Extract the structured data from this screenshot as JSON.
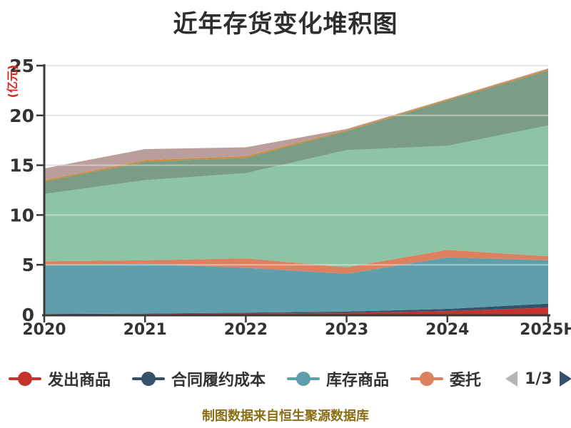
{
  "title": {
    "text": "近年存货变化堆积图",
    "color": "#2e2e2e"
  },
  "y_axis": {
    "name": "(亿元)",
    "name_color": "#e2231a",
    "tick_label_color": "#333333"
  },
  "x_axis": {
    "tick_label_color": "#333333"
  },
  "legend": {
    "items": [
      {
        "label": "发出商品",
        "color": "#c5342c"
      },
      {
        "label": "合同履约成本",
        "color": "#35516c"
      },
      {
        "label": "库存商品",
        "color": "#5f9fac"
      },
      {
        "label": "委托",
        "color": "#dc8060"
      }
    ],
    "page_indicator": "1/3",
    "prev_arrow_color": "#b5b5b5",
    "next_arrow_color": "#35516c",
    "label_color": "#333333"
  },
  "footer": {
    "text": "制图数据来自恒生聚源数据库",
    "color": "#8a6d14"
  },
  "chart_data": {
    "type": "area",
    "stacked": true,
    "title": "近年存货变化堆积图",
    "ylabel": "(亿元)",
    "ylim": [
      0,
      25
    ],
    "y_ticks": [
      0,
      5,
      10,
      15,
      20,
      25
    ],
    "grid": true,
    "gridline_color": "#d2d2d2",
    "axis_color": "#3a3a3a",
    "legend_position": "bottom",
    "legend_page": "1/3",
    "categories": [
      "2020",
      "2021",
      "2022",
      "2023",
      "2024",
      "2025H"
    ],
    "series": [
      {
        "name": "发出商品",
        "legend_visible": true,
        "color": "#c5342c",
        "values": [
          0.03,
          0.05,
          0.1,
          0.18,
          0.35,
          0.7
        ]
      },
      {
        "name": "合同履约成本",
        "legend_visible": true,
        "color": "#35516c",
        "values": [
          0.03,
          0.05,
          0.1,
          0.12,
          0.22,
          0.4
        ]
      },
      {
        "name": "库存商品",
        "legend_visible": true,
        "color": "#5f9fac",
        "values": [
          4.95,
          5.0,
          4.5,
          3.8,
          5.18,
          4.35
        ]
      },
      {
        "name": "委托",
        "legend_visible": true,
        "color": "#dc8060",
        "values": [
          0.35,
          0.35,
          0.95,
          0.65,
          0.75,
          0.4
        ]
      },
      {
        "name": "",
        "legend_visible": false,
        "color": "#8dc4a5",
        "values": [
          6.75,
          8.05,
          8.55,
          11.77,
          10.45,
          13.15
        ]
      },
      {
        "name": "",
        "legend_visible": false,
        "color": "#7c9d85",
        "values": [
          1.25,
          1.85,
          1.55,
          1.9,
          4.55,
          5.5
        ]
      },
      {
        "name": "",
        "legend_visible": false,
        "color": "#cf8a31",
        "values": [
          0.12,
          0.15,
          0.15,
          0.1,
          0.1,
          0.12
        ]
      },
      {
        "name": "",
        "legend_visible": false,
        "color": "#ba9e9b",
        "values": [
          1.2,
          1.12,
          0.9,
          0.12,
          0.06,
          0.1
        ]
      }
    ]
  }
}
